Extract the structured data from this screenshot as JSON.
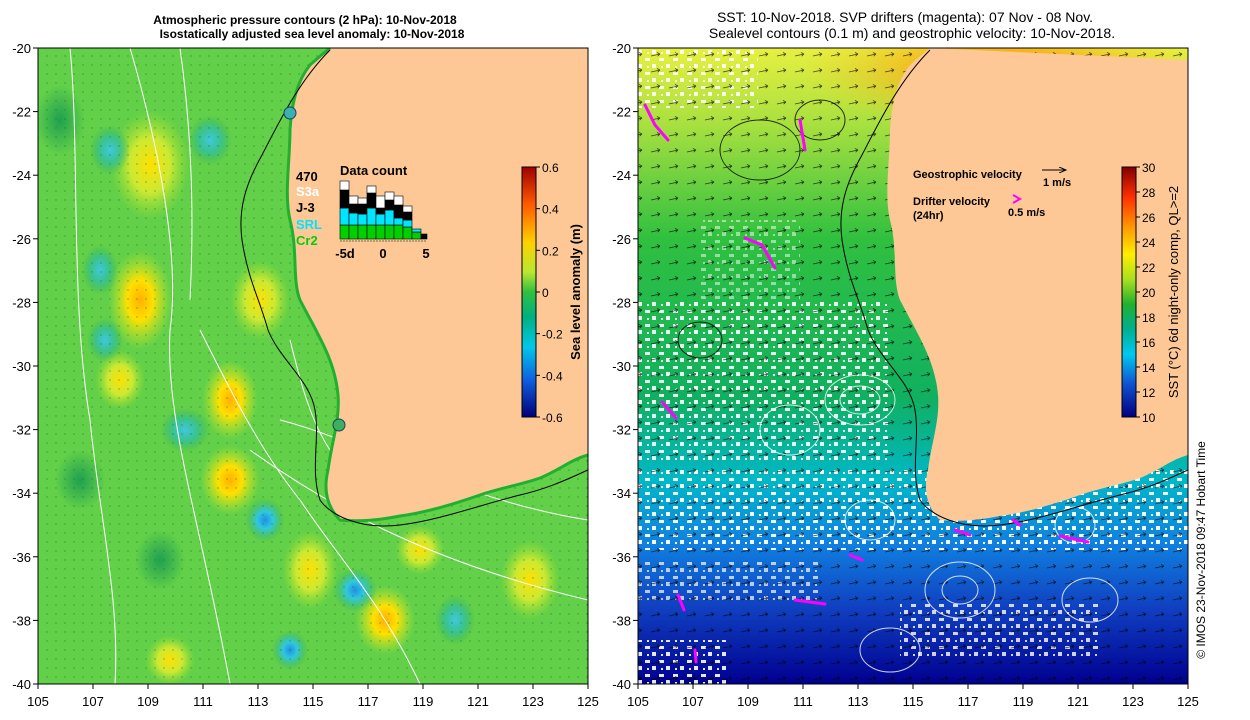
{
  "left_panel": {
    "title_line1": "Atmospheric pressure contours (2 hPa): 10-Nov-2018",
    "title_line2": "Isostatically adjusted sea level anomaly: 10-Nov-2018",
    "colorbar_label": "Sea level anomaly (m)",
    "colorbar_ticks": [
      "0.6",
      "0.4",
      "0.2",
      "0",
      "-0.2",
      "-0.4",
      "-0.6"
    ],
    "inset": {
      "title": "Data count",
      "count": "470",
      "legend": [
        {
          "label": "S3a",
          "color": "#ffffff"
        },
        {
          "label": "J-3",
          "color": "#000000"
        },
        {
          "label": "SRL",
          "color": "#00e5ff"
        },
        {
          "label": "Cr2",
          "color": "#00d000"
        }
      ],
      "x_ticks": [
        "-5d",
        "0",
        "5"
      ]
    }
  },
  "right_panel": {
    "title_line1": "SST: 10-Nov-2018. SVP drifters (magenta): 07 Nov - 08 Nov.",
    "title_line2": "Sealevel contours (0.1 m) and geostrophic velocity: 10-Nov-2018.",
    "colorbar_label": "SST (°C) 6d night-only comp, QL>=2",
    "colorbar_ticks": [
      "30",
      "28",
      "26",
      "24",
      "22",
      "20",
      "18",
      "16",
      "14",
      "12",
      "10"
    ],
    "legend": {
      "geo_label": "Geostrophic velocity",
      "geo_scale": "1 m/s",
      "drifter_label": "Drifter velocity",
      "drifter_sub": "(24hr)",
      "drifter_scale": "0.5 m/s"
    }
  },
  "axes": {
    "y_ticks": [
      "-20",
      "-22",
      "-24",
      "-26",
      "-28",
      "-30",
      "-32",
      "-34",
      "-36",
      "-38",
      "-40"
    ],
    "x_ticks": [
      "105",
      "107",
      "109",
      "111",
      "113",
      "115",
      "117",
      "119",
      "121",
      "123",
      "125"
    ]
  },
  "credit": "© IMOS 23-Nov-2018 09:47 Hobart Time",
  "colors": {
    "land": "#fdc896",
    "sla_base": "#5fd04a",
    "magenta": "#ff00ff"
  }
}
